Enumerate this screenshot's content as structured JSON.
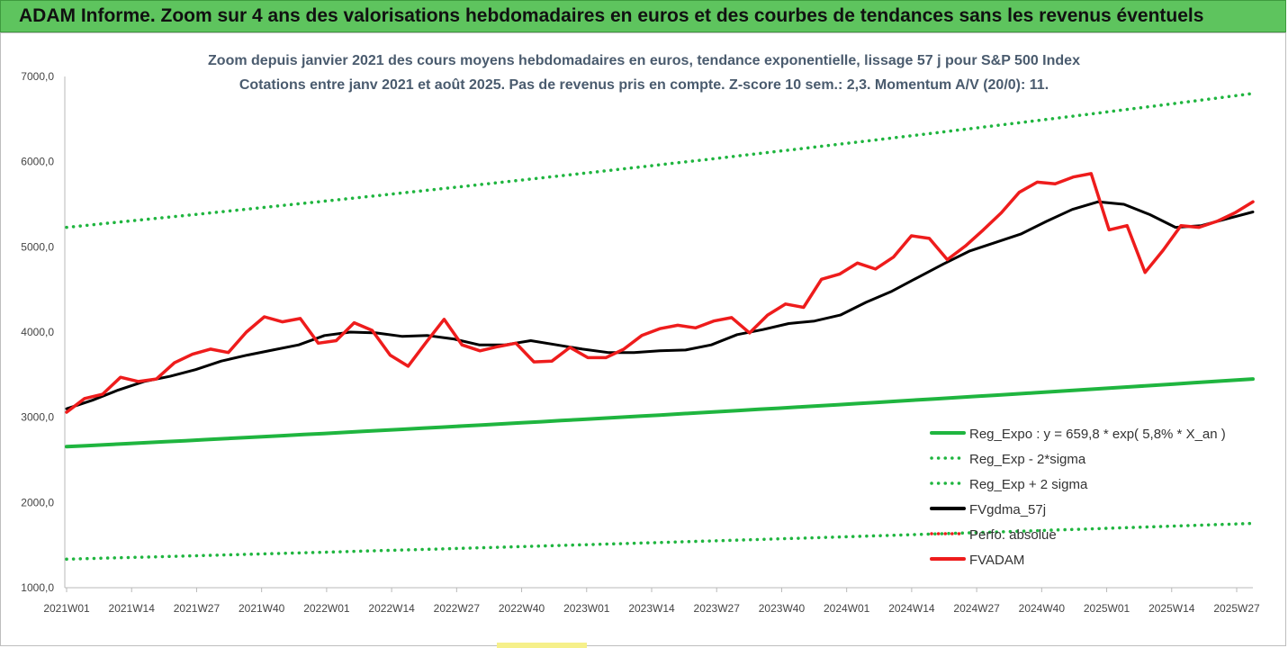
{
  "header": {
    "title": "ADAM Informe. Zoom sur 4 ans des valorisations hebdomadaires en euros et des courbes de tendances sans les revenus éventuels"
  },
  "colors": {
    "header_bg": "#5ec45e",
    "title_text": "#4a5b6e",
    "green": "#1fb53f",
    "dotted_green": "#1fb53f",
    "black": "#000000",
    "red": "#ee1c1c"
  },
  "chart_data": {
    "type": "line",
    "title": "Zoom depuis janvier 2021 des cours moyens hebdomadaires en euros, tendance exponentielle, lissage 57 j pour S&P 500 Index",
    "subtitle": "Cotations entre janv 2021 et août 2025. Pas de revenus pris en compte. Z-score 10 sem.: 2,3. Momentum A/V (20/0): 11.",
    "xlabel": "",
    "ylabel": "",
    "ylim": [
      1000,
      7000
    ],
    "yticks": [
      "1000,0",
      "2000,0",
      "3000,0",
      "4000,0",
      "5000,0",
      "6000,0",
      "7000,0"
    ],
    "xticks": [
      "2021W01",
      "2021W14",
      "2021W27",
      "2021W40",
      "2022W01",
      "2022W14",
      "2022W27",
      "2022W40",
      "2023W01",
      "2023W14",
      "2023W27",
      "2023W40",
      "2024W01",
      "2024W14",
      "2024W27",
      "2024W40",
      "2025W01",
      "2025W14",
      "2025W27"
    ],
    "grid": false,
    "legend_position": "bottom-right",
    "series": [
      {
        "name": "Reg_Expo : y = 659,8 * exp( 5,8% * X_an )",
        "style": "solid-thick",
        "color": "#1fb53f",
        "start": 2655,
        "end": 3450
      },
      {
        "name": "Reg_Exp - 2*sigma",
        "style": "dotted",
        "color": "#1fb53f",
        "start": 1335,
        "end": 1755
      },
      {
        "name": "Reg_Exp + 2 sigma",
        "style": "dotted",
        "color": "#1fb53f",
        "start": 5230,
        "end": 6800
      },
      {
        "name": "FVgdma_57j",
        "style": "solid",
        "color": "#000000",
        "values": [
          3100,
          3200,
          3320,
          3420,
          3480,
          3560,
          3660,
          3730,
          3790,
          3850,
          3960,
          4000,
          3990,
          3950,
          3960,
          3920,
          3850,
          3850,
          3900,
          3850,
          3800,
          3760,
          3760,
          3780,
          3790,
          3850,
          3970,
          4030,
          4100,
          4130,
          4200,
          4350,
          4480,
          4640,
          4800,
          4950,
          5050,
          5150,
          5300,
          5440,
          5530,
          5500,
          5380,
          5230,
          5250,
          5330,
          5410
        ]
      },
      {
        "name": "Perfo. absolue",
        "style": "dotted",
        "color": "#ee1c1c",
        "values": []
      },
      {
        "name": "FVADAM",
        "style": "solid-thick",
        "color": "#ee1c1c",
        "values": [
          3060,
          3220,
          3270,
          3470,
          3420,
          3450,
          3640,
          3740,
          3800,
          3760,
          4000,
          4180,
          4120,
          4160,
          3870,
          3900,
          4110,
          4020,
          3730,
          3600,
          3880,
          4150,
          3850,
          3780,
          3830,
          3870,
          3650,
          3660,
          3820,
          3700,
          3700,
          3800,
          3960,
          4040,
          4080,
          4050,
          4130,
          4170,
          3990,
          4200,
          4330,
          4290,
          4620,
          4680,
          4810,
          4740,
          4880,
          5130,
          5100,
          4850,
          5010,
          5200,
          5400,
          5640,
          5760,
          5740,
          5820,
          5860,
          5200,
          5250,
          4700,
          4960,
          5250,
          5230,
          5300,
          5400,
          5530
        ]
      }
    ]
  }
}
